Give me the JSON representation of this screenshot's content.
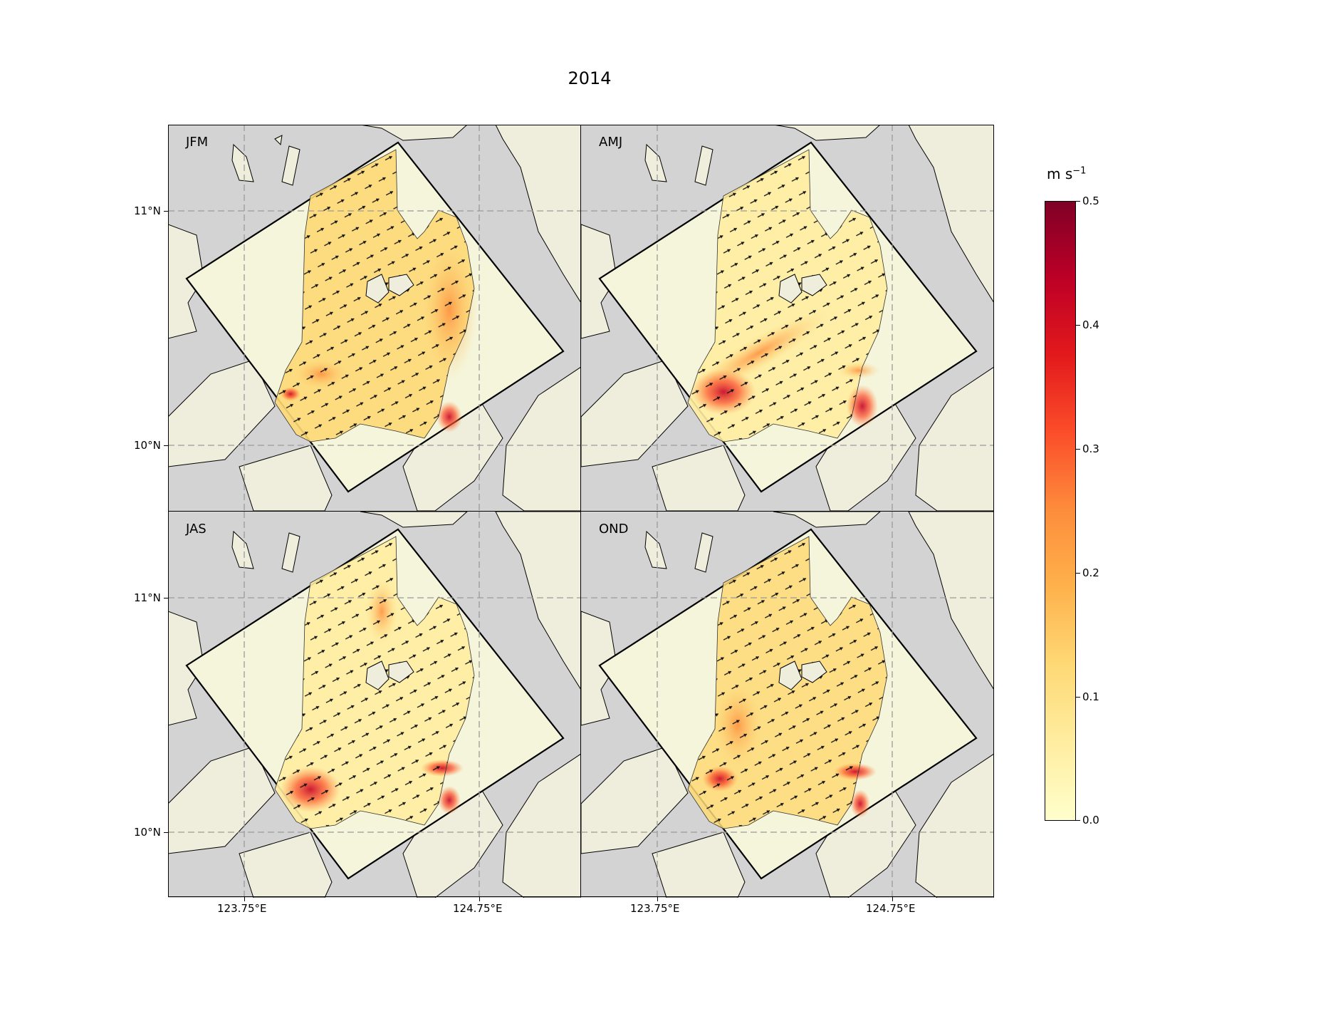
{
  "title": "2014",
  "panels": [
    {
      "label": "JFM"
    },
    {
      "label": "AMJ"
    },
    {
      "label": "JAS"
    },
    {
      "label": "OND"
    }
  ],
  "axes": {
    "lat_ticks": [
      "11°N",
      "10°N"
    ],
    "lon_ticks": [
      "123.75°E",
      "124.75°E"
    ]
  },
  "colorbar": {
    "unit": "m s",
    "unit_exponent": "−1",
    "ticks": [
      "0.5",
      "0.4",
      "0.3",
      "0.2",
      "0.1",
      "0.0"
    ],
    "min": 0.0,
    "max": 0.5,
    "colormap": "YlOrRd"
  },
  "colors": {
    "land": "#efeedc",
    "sea": "#d3d3d3",
    "domain_fill": "#f5f5dc",
    "grid": "#9a9a9a"
  }
}
